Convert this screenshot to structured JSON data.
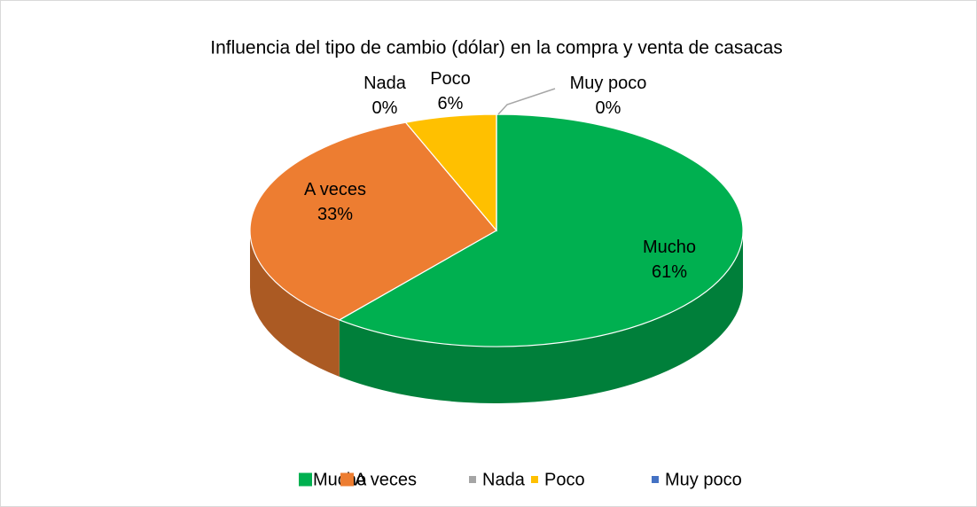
{
  "chart_data": {
    "type": "pie3d",
    "title": "Influencia del tipo de cambio (dólar) en la compra y venta de casacas",
    "categories": [
      "Mucho",
      "A veces",
      "Nada",
      "Poco",
      "Muy poco"
    ],
    "values": [
      61,
      33,
      0,
      6,
      0
    ],
    "value_labels": [
      "61%",
      "33%",
      "0%",
      "6%",
      "0%"
    ],
    "colors": [
      "#00b050",
      "#ed7d31",
      "#a5a5a5",
      "#ffc000",
      "#4472c4"
    ],
    "legend": "bottom"
  }
}
